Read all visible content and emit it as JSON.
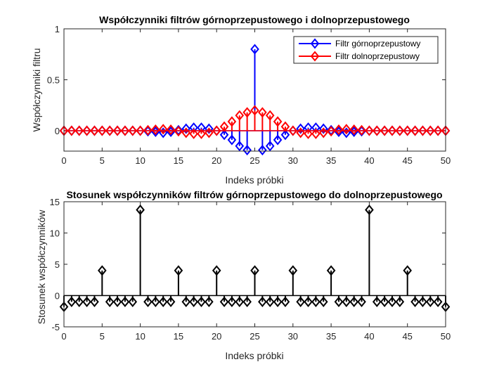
{
  "colors": {
    "highpass": "#0000FF",
    "lowpass": "#FF0000",
    "ratio": "#000000",
    "axes": "#262626",
    "background": "#FFFFFF"
  },
  "chart_data": [
    {
      "type": "stem",
      "title": "Współczynniki filtrów górnoprzepustowego i dolnoprzepustowego",
      "xlabel": "Indeks próbki",
      "ylabel": "Współczynniki filtru",
      "xlim": [
        0,
        50
      ],
      "ylim": [
        -0.2,
        1
      ],
      "xticks": [
        "0",
        "5",
        "10",
        "15",
        "20",
        "25",
        "30",
        "35",
        "40",
        "45",
        "50"
      ],
      "yticks": [
        "0",
        "0.5",
        "1"
      ],
      "ytick_values": [
        0,
        0.5,
        1
      ],
      "legend_position": "top-right",
      "x": [
        0,
        1,
        2,
        3,
        4,
        5,
        6,
        7,
        8,
        9,
        10,
        11,
        12,
        13,
        14,
        15,
        16,
        17,
        18,
        19,
        20,
        21,
        22,
        23,
        24,
        25,
        26,
        27,
        28,
        29,
        30,
        31,
        32,
        33,
        34,
        35,
        36,
        37,
        38,
        39,
        40,
        41,
        42,
        43,
        44,
        45,
        46,
        47,
        48,
        49,
        50
      ],
      "series": [
        {
          "name": "Filtr górnoprzepustowy",
          "color": "#0000FF",
          "marker": "diamond",
          "values": [
            0,
            0,
            0,
            0,
            0,
            0,
            0,
            0,
            0,
            0,
            0,
            -0.005,
            -0.01,
            -0.02,
            -0.01,
            0.005,
            0.02,
            0.03,
            0.03,
            0.02,
            0,
            -0.04,
            -0.09,
            -0.15,
            -0.19,
            0.8,
            -0.19,
            -0.15,
            -0.09,
            -0.04,
            0,
            0.02,
            0.03,
            0.03,
            0.02,
            0.005,
            -0.01,
            -0.02,
            -0.01,
            -0.005,
            0,
            0,
            0,
            0,
            0,
            0,
            0,
            0,
            0,
            0,
            0
          ]
        },
        {
          "name": "Filtr dolnoprzepustowy",
          "color": "#FF0000",
          "marker": "diamond",
          "values": [
            0,
            0,
            0,
            0,
            0,
            0,
            0,
            0,
            0,
            0,
            0,
            0.005,
            0.01,
            0.015,
            0.01,
            -0.005,
            -0.02,
            -0.03,
            -0.03,
            -0.02,
            0,
            0.04,
            0.09,
            0.15,
            0.18,
            0.2,
            0.18,
            0.15,
            0.09,
            0.04,
            0,
            -0.02,
            -0.03,
            -0.03,
            -0.02,
            -0.005,
            0.01,
            0.015,
            0.01,
            0.005,
            0,
            0,
            0,
            0,
            0,
            0,
            0,
            0,
            0,
            0,
            0
          ]
        }
      ]
    },
    {
      "type": "stem",
      "title": "Stosunek współczynników filtrów górnoprzepustowego do dolnoprzepustowego",
      "xlabel": "Indeks próbki",
      "ylabel": "Stosunek współczynników",
      "xlim": [
        0,
        50
      ],
      "ylim": [
        -5,
        15
      ],
      "xticks": [
        "0",
        "5",
        "10",
        "15",
        "20",
        "25",
        "30",
        "35",
        "40",
        "45",
        "50"
      ],
      "yticks": [
        "-5",
        "0",
        "5",
        "10",
        "15"
      ],
      "ytick_values": [
        -5,
        0,
        5,
        10,
        15
      ],
      "x": [
        0,
        1,
        2,
        3,
        4,
        5,
        6,
        7,
        8,
        9,
        10,
        11,
        12,
        13,
        14,
        15,
        16,
        17,
        18,
        19,
        20,
        21,
        22,
        23,
        24,
        25,
        26,
        27,
        28,
        29,
        30,
        31,
        32,
        33,
        34,
        35,
        36,
        37,
        38,
        39,
        40,
        41,
        42,
        43,
        44,
        45,
        46,
        47,
        48,
        49,
        50
      ],
      "series": [
        {
          "color": "#000000",
          "marker": "diamond",
          "values": [
            -1.8,
            -1,
            -1,
            -1,
            -1,
            4,
            -1,
            -1,
            -1,
            -1,
            13.7,
            -1,
            -1,
            -1,
            -1,
            4,
            -1,
            -1,
            -1,
            -1,
            4,
            -1,
            -1,
            -1,
            -1,
            4,
            -1,
            -1,
            -1,
            -1,
            4,
            -1,
            -1,
            -1,
            -1,
            4,
            -1,
            -1,
            -1,
            -1,
            13.7,
            -1,
            -1,
            -1,
            -1,
            4,
            -1,
            -1,
            -1,
            -1,
            -1.8
          ]
        }
      ]
    }
  ]
}
